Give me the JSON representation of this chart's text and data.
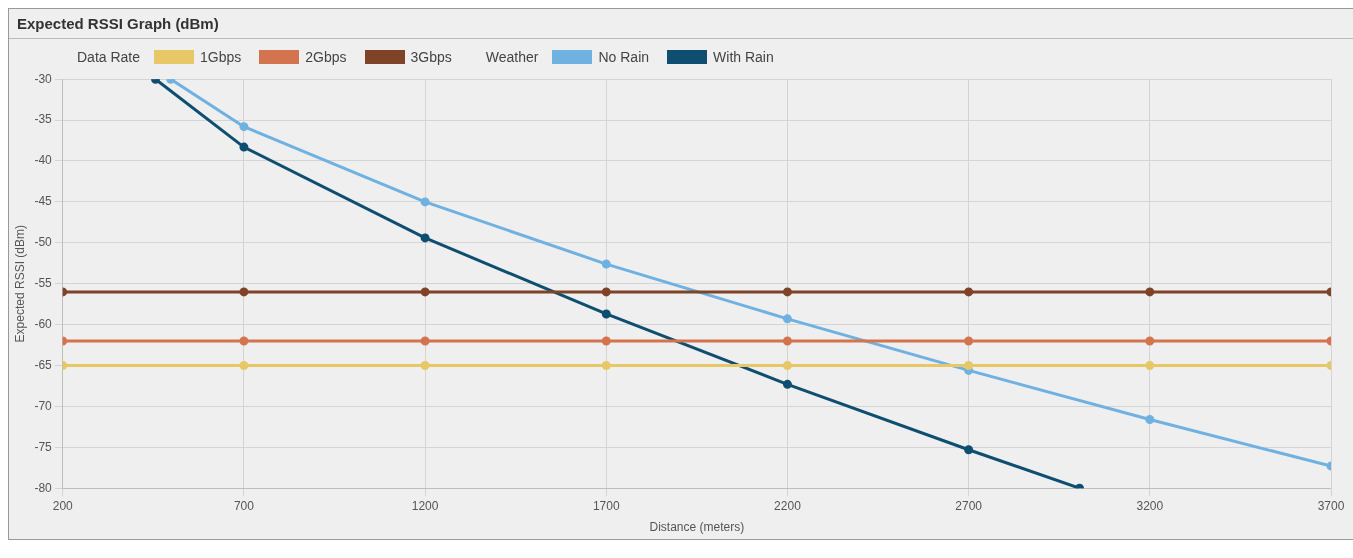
{
  "chart_data": {
    "type": "line",
    "title": "Expected RSSI Graph (dBm)",
    "xlabel": "Distance (meters)",
    "ylabel": "Expected RSSI (dBm)",
    "legend_title": [
      "Data Rate",
      "Weather"
    ],
    "x": [
      200,
      700,
      1200,
      1700,
      2200,
      2700,
      3200,
      3700
    ],
    "series": [
      {
        "name": "1Gbps",
        "color": "#e8c766",
        "values": [
          -65,
          -65,
          -65,
          -65,
          -65,
          -65,
          -65,
          -65
        ]
      },
      {
        "name": "2Gbps",
        "color": "#d4744f",
        "values": [
          -62,
          -62,
          -62,
          -62,
          -62,
          -62,
          -62,
          -62
        ]
      },
      {
        "name": "3Gbps",
        "color": "#7f4327",
        "values": [
          -56,
          -56,
          -56,
          -56,
          -56,
          -56,
          -56,
          -56
        ]
      },
      {
        "name": "No Rain",
        "color": "#6fb1e0",
        "x": [
          498,
          700,
          1200,
          1700,
          2200,
          2700,
          3200,
          3700
        ],
        "values": [
          -30,
          -35.8,
          -45,
          -52.6,
          -59.3,
          -65.6,
          -71.6,
          -77.3
        ]
      },
      {
        "name": "With Rain",
        "color": "#0e4e70",
        "x": [
          456,
          700,
          1200,
          1700,
          2200,
          2700,
          3006
        ],
        "values": [
          -30,
          -38.3,
          -49.4,
          -58.7,
          -67.3,
          -75.3,
          -80
        ]
      }
    ],
    "xlim": [
      200,
      3700
    ],
    "xticks": [
      200,
      700,
      1200,
      1700,
      2200,
      2700,
      3200,
      3700
    ],
    "ylim": [
      -80,
      -30
    ],
    "yticks": [
      -80,
      -75,
      -70,
      -65,
      -60,
      -55,
      -50,
      -45,
      -40,
      -35,
      -30
    ],
    "grid": true,
    "legend": "top left",
    "marker": "circle",
    "line_style": "solid"
  }
}
